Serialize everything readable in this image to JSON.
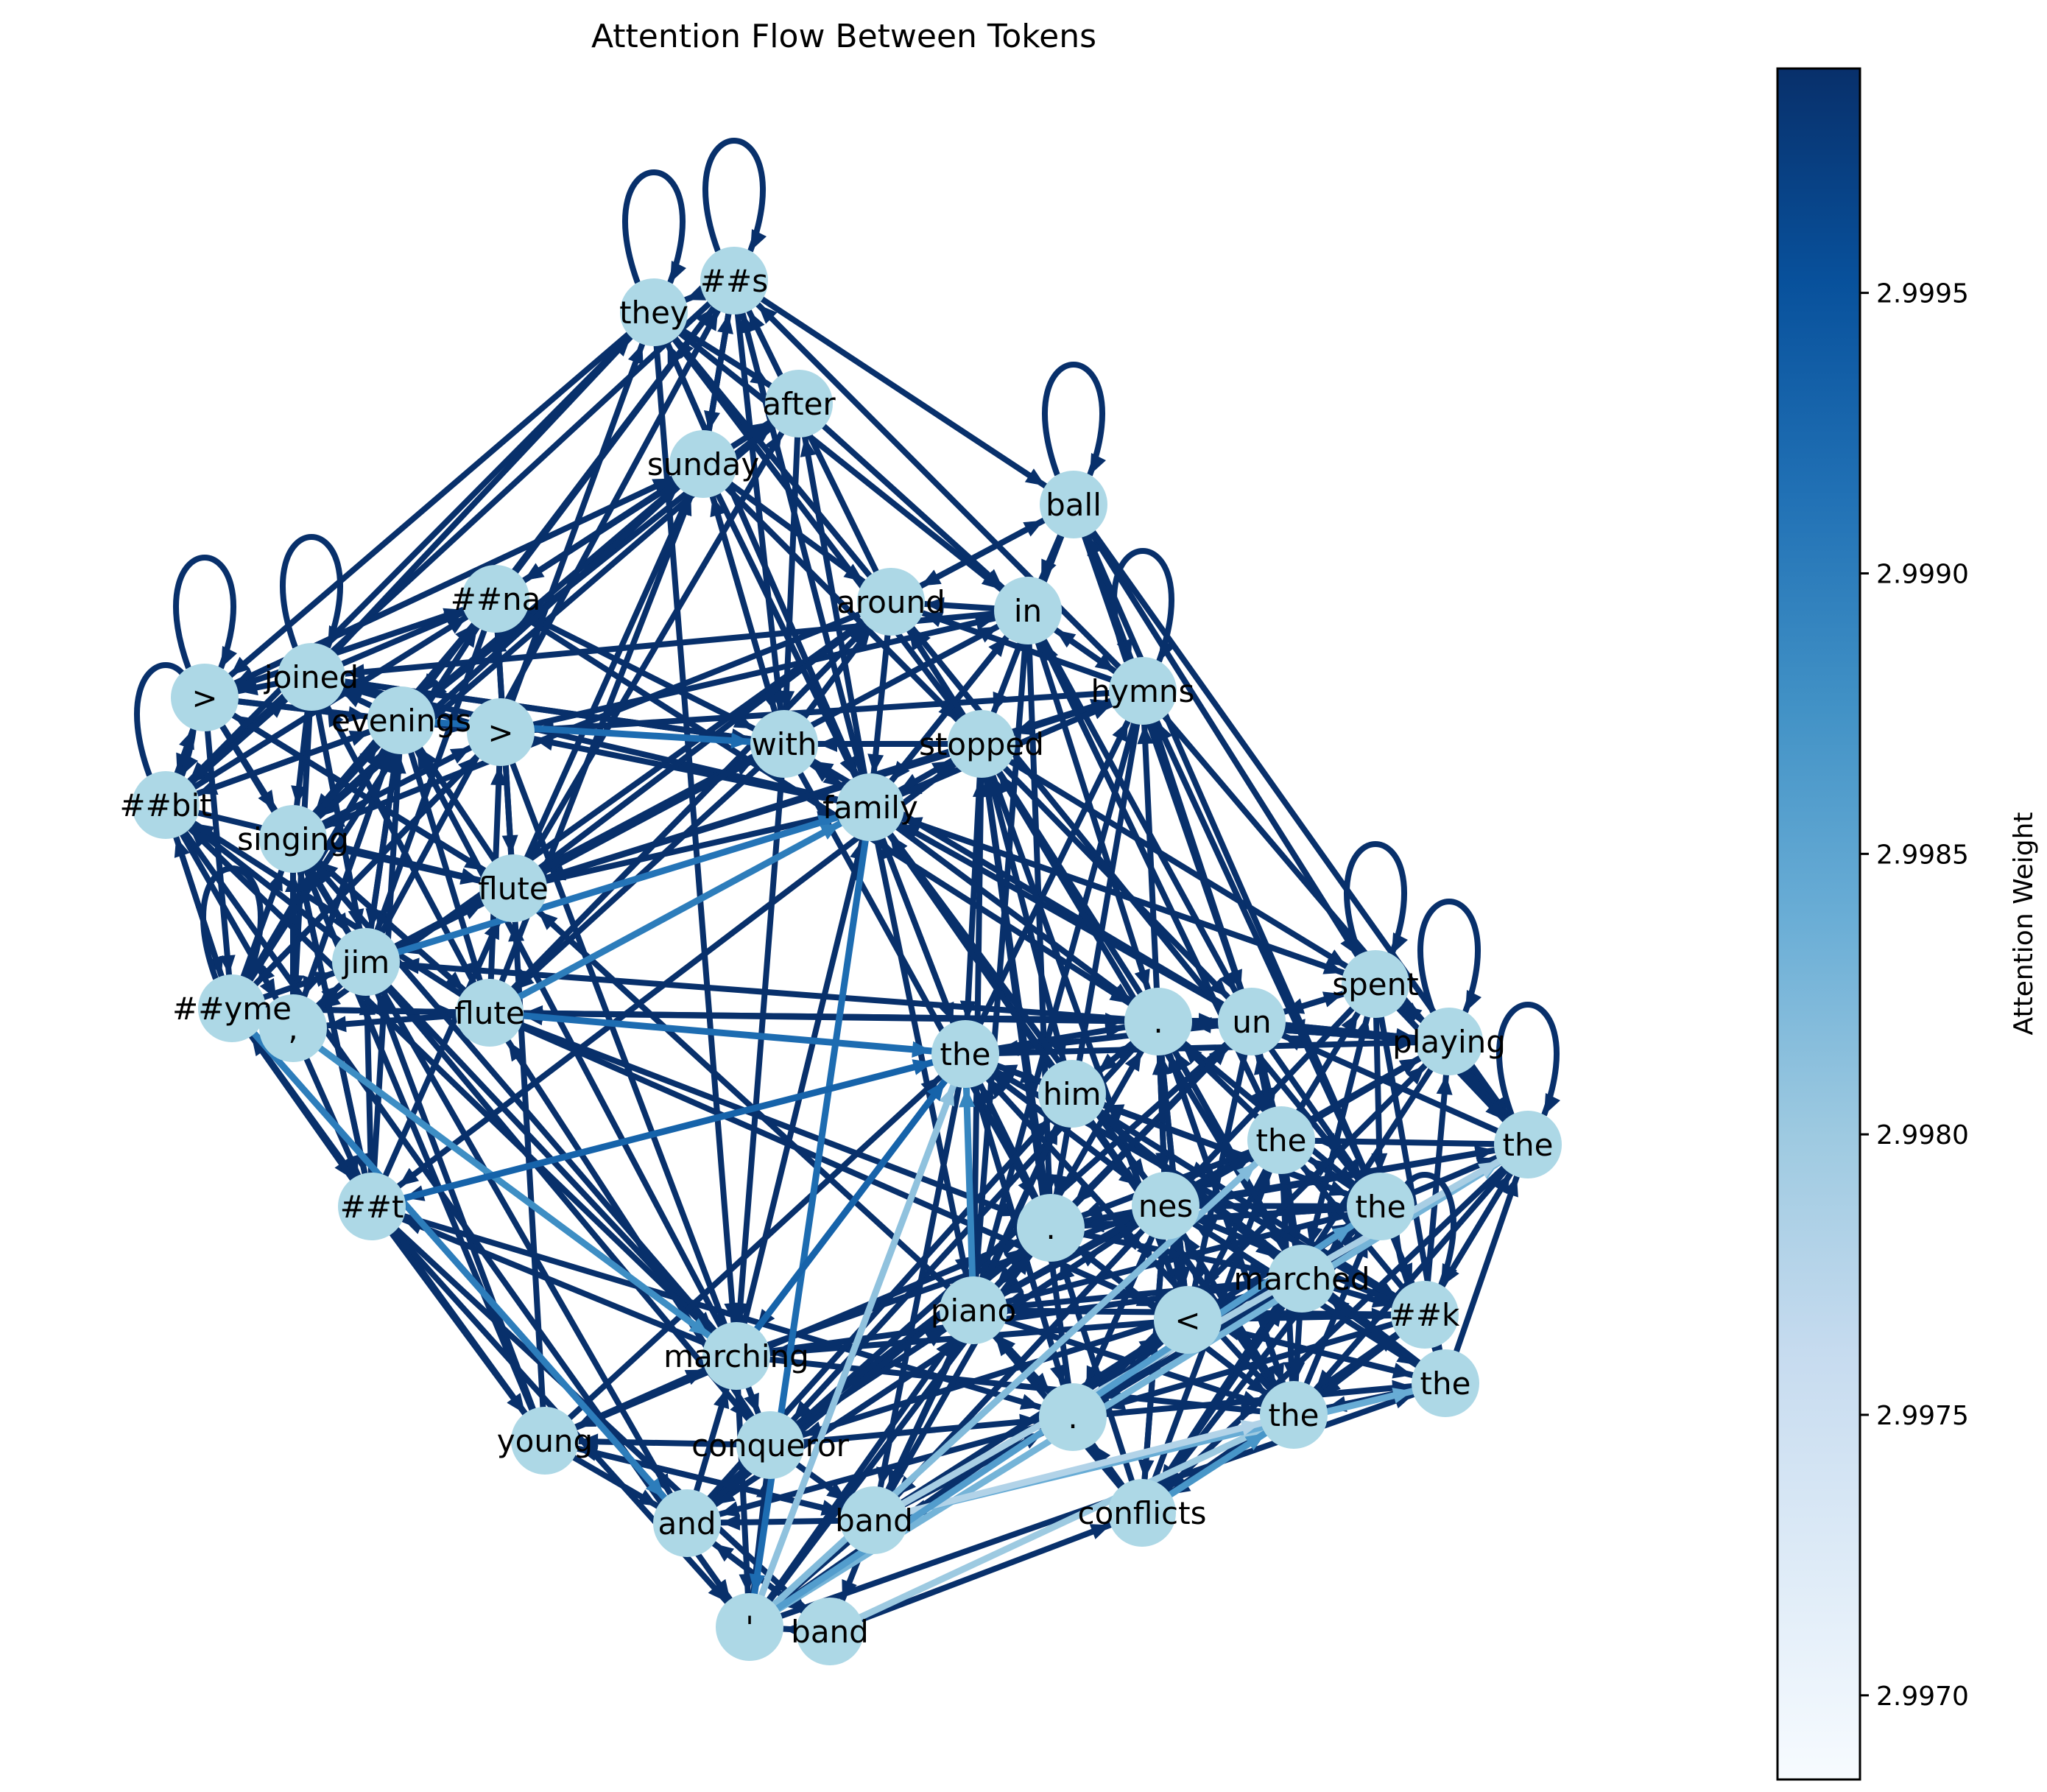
{
  "chart_data": {
    "type": "network",
    "title": "Attention Flow Between Tokens",
    "colorbar": {
      "label": "Attention Weight",
      "min": 2.99685,
      "max": 2.9999,
      "ticks": [
        "2.9970",
        "2.9975",
        "2.9980",
        "2.9985",
        "2.9990",
        "2.9995"
      ],
      "tick_values": [
        2.997,
        2.9975,
        2.998,
        2.9985,
        2.999,
        2.9995
      ],
      "colors": [
        "#f7fbff",
        "#deebf7",
        "#c6dbef",
        "#9ecae1",
        "#6baed6",
        "#4292c6",
        "#2171b5",
        "#08519c",
        "#08306b"
      ]
    },
    "node_color": "#add8e6",
    "edge_color_default": "#08306b",
    "nodes": [
      {
        "id": "they",
        "label": "they"
      },
      {
        "id": "s",
        "label": "##s"
      },
      {
        "id": "after",
        "label": "after"
      },
      {
        "id": "sunday",
        "label": "sunday"
      },
      {
        "id": "ball",
        "label": "ball"
      },
      {
        "id": "na",
        "label": "##na"
      },
      {
        "id": "around",
        "label": "around"
      },
      {
        "id": "in",
        "label": "in"
      },
      {
        "id": "gt1",
        "label": ">"
      },
      {
        "id": "joined",
        "label": "joined"
      },
      {
        "id": "hymns",
        "label": "hymns"
      },
      {
        "id": "evenings",
        "label": "evenings"
      },
      {
        "id": "gt2",
        "label": ">"
      },
      {
        "id": "with",
        "label": "with"
      },
      {
        "id": "stopped",
        "label": "stopped"
      },
      {
        "id": "bit",
        "label": "##bit"
      },
      {
        "id": "family",
        "label": "family"
      },
      {
        "id": "singing",
        "label": "singing"
      },
      {
        "id": "flute1",
        "label": "flute"
      },
      {
        "id": "jim",
        "label": "jim"
      },
      {
        "id": "spent",
        "label": "spent"
      },
      {
        "id": "yme",
        "label": "##yme"
      },
      {
        "id": "comma",
        "label": ","
      },
      {
        "id": "flute2",
        "label": "flute"
      },
      {
        "id": "dot1",
        "label": "."
      },
      {
        "id": "un",
        "label": "un"
      },
      {
        "id": "playing",
        "label": "playing"
      },
      {
        "id": "the1",
        "label": "the"
      },
      {
        "id": "him",
        "label": "him"
      },
      {
        "id": "the2",
        "label": "the"
      },
      {
        "id": "the3",
        "label": "the"
      },
      {
        "id": "t",
        "label": "##t"
      },
      {
        "id": "dot2",
        "label": "."
      },
      {
        "id": "nes",
        "label": "nes"
      },
      {
        "id": "the4",
        "label": "the"
      },
      {
        "id": "marched",
        "label": "marched"
      },
      {
        "id": "piano",
        "label": "piano"
      },
      {
        "id": "lt",
        "label": "<"
      },
      {
        "id": "k",
        "label": "##k"
      },
      {
        "id": "marching",
        "label": "marching"
      },
      {
        "id": "the5",
        "label": "the"
      },
      {
        "id": "dot3",
        "label": "."
      },
      {
        "id": "the6",
        "label": "the"
      },
      {
        "id": "young",
        "label": "young"
      },
      {
        "id": "conqueror",
        "label": "conqueror"
      },
      {
        "id": "conflicts",
        "label": "conflicts"
      },
      {
        "id": "and",
        "label": "and"
      },
      {
        "id": "band1",
        "label": "band"
      },
      {
        "id": "quote",
        "label": "'"
      },
      {
        "id": "band2",
        "label": "band"
      }
    ],
    "self_loops": [
      "they",
      "s",
      "ball",
      "gt1",
      "joined",
      "bit",
      "yme",
      "spent",
      "playing",
      "the3",
      "hymns",
      "k"
    ],
    "light_edges": [
      {
        "from": "quote",
        "to": "the1",
        "weight": 2.9981
      },
      {
        "from": "quote",
        "to": "the2",
        "weight": 2.9982
      },
      {
        "from": "quote",
        "to": "the3",
        "weight": 2.9983
      },
      {
        "from": "band2",
        "to": "the6",
        "weight": 2.998
      },
      {
        "from": "band1",
        "to": "the3",
        "weight": 2.9979
      },
      {
        "from": "band1",
        "to": "the5",
        "weight": 2.9984
      },
      {
        "from": "band1",
        "to": "the6",
        "weight": 2.9978
      },
      {
        "from": "quote",
        "to": "the4",
        "weight": 2.9986
      },
      {
        "from": "comma",
        "to": "marching",
        "weight": 2.9988
      },
      {
        "from": "yme",
        "to": "and",
        "weight": 2.999
      },
      {
        "from": "jim",
        "to": "family",
        "weight": 2.9991
      },
      {
        "from": "flute2",
        "to": "the1",
        "weight": 2.9992
      },
      {
        "from": "flute2",
        "to": "family",
        "weight": 2.999
      },
      {
        "from": "family",
        "to": "quote",
        "weight": 2.9992
      },
      {
        "from": "marching",
        "to": "the1",
        "weight": 2.9993
      },
      {
        "from": "t",
        "to": "the1",
        "weight": 2.9993
      },
      {
        "from": "evenings",
        "to": "with",
        "weight": 2.9992
      },
      {
        "from": "piano",
        "to": "the1",
        "weight": 2.9989
      },
      {
        "from": "conflicts",
        "to": "the6",
        "weight": 2.9987
      }
    ]
  }
}
